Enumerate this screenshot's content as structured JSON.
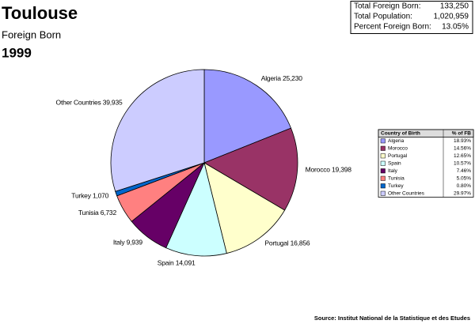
{
  "chart_data": {
    "type": "pie",
    "title": "Toulouse",
    "subtitle": "Foreign Born",
    "year": "1999",
    "categories": [
      "Algeria",
      "Morocco",
      "Portugal",
      "Spain",
      "Italy",
      "Tunisia",
      "Turkey",
      "Other Countries"
    ],
    "values": [
      25230,
      19398,
      16856,
      14091,
      9939,
      6732,
      1070,
      39935
    ],
    "value_labels": [
      "25,230",
      "19,398",
      "16,856",
      "14,091",
      "9,939",
      "6,732",
      "1,070",
      "39,935"
    ],
    "colors": [
      "#9999ff",
      "#993366",
      "#ffffcc",
      "#ccffff",
      "#660066",
      "#ff8080",
      "#0066cc",
      "#ccccff"
    ],
    "legend_table": {
      "header": [
        "Country of Birth",
        "% of FB"
      ],
      "percents": [
        "18.93%",
        "14.56%",
        "12.65%",
        "10.57%",
        "7.46%",
        "5.05%",
        "0.80%",
        "29.97%"
      ]
    },
    "stats": [
      {
        "label": "Total Foreign Born:",
        "value": "133,250"
      },
      {
        "label": "Total Population:",
        "value": "1,020,959"
      },
      {
        "label": "Percent Foreign Born:",
        "value": "13.05%"
      }
    ],
    "source": "Source: Institut National de la Statistique et des Etudes"
  }
}
